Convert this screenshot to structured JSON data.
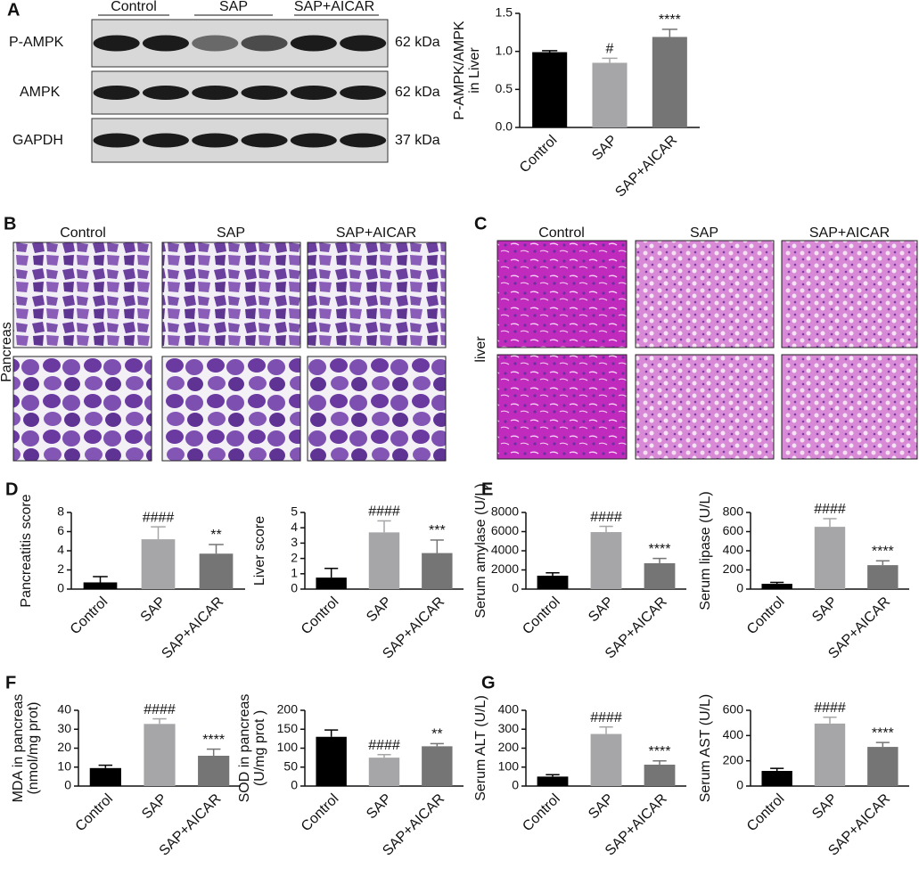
{
  "panels": {
    "letters": [
      "A",
      "B",
      "C",
      "D",
      "E",
      "F",
      "G"
    ],
    "blot": {
      "groups": [
        "Control",
        "SAP",
        "SAP+AICAR"
      ],
      "rows": [
        "P-AMPK",
        "AMPK",
        "GAPDH"
      ],
      "sizes": [
        "62 kDa",
        "62 kDa",
        "37 kDa"
      ]
    },
    "pancreas": {
      "label": "Pancreas",
      "groups": [
        "Control",
        "SAP",
        "SAP+AICAR"
      ]
    },
    "liver": {
      "label": "liver",
      "groups": [
        "Control",
        "SAP",
        "SAP+AICAR"
      ]
    }
  },
  "chart_data": [
    {
      "type": "bar",
      "ylabel": [
        "P-AMPK/AMPK",
        "in Liver"
      ],
      "categories": [
        "Control",
        "SAP",
        "SAP+AICAR"
      ],
      "values": [
        0.99,
        0.85,
        1.19
      ],
      "errors": [
        0.02,
        0.06,
        0.1
      ],
      "annotations": [
        null,
        "#",
        "****"
      ],
      "colors": [
        "#000000",
        "#a6a6a8",
        "#757575"
      ],
      "ylim": [
        0,
        1.5
      ],
      "yticks": [
        {
          "value": 0,
          "label": "0.0"
        },
        0.5,
        {
          "value": 1,
          "label": "1.0"
        },
        1.5
      ]
    },
    {
      "type": "bar",
      "ylabel": [
        "Pancreatitis score"
      ],
      "categories": [
        "Control",
        "SAP",
        "SAP+AICAR"
      ],
      "values": [
        0.7,
        5.2,
        3.7
      ],
      "errors": [
        0.6,
        1.3,
        0.95
      ],
      "annotations": [
        null,
        "####",
        "**"
      ],
      "colors": [
        "#000000",
        "#a6a6a8",
        "#757575"
      ],
      "ylim": [
        0,
        8
      ],
      "yticks": [
        0,
        2,
        4,
        6,
        8
      ]
    },
    {
      "type": "bar",
      "ylabel": [
        "Liver score"
      ],
      "categories": [
        "Control",
        "SAP",
        "SAP+AICAR"
      ],
      "values": [
        0.75,
        3.7,
        2.35
      ],
      "errors": [
        0.6,
        0.75,
        0.85
      ],
      "annotations": [
        null,
        "####",
        "***"
      ],
      "colors": [
        "#000000",
        "#a6a6a8",
        "#757575"
      ],
      "ylim": [
        0,
        5
      ],
      "yticks": [
        0,
        1,
        2,
        3,
        4,
        5
      ]
    },
    {
      "type": "bar",
      "ylabel": [
        "Serum amylase (U/L)"
      ],
      "categories": [
        "Control",
        "SAP",
        "SAP+AICAR"
      ],
      "values": [
        1400,
        5950,
        2700
      ],
      "errors": [
        300,
        600,
        500
      ],
      "annotations": [
        null,
        "####",
        "****"
      ],
      "colors": [
        "#000000",
        "#a6a6a8",
        "#757575"
      ],
      "ylim": [
        0,
        8000
      ],
      "yticks": [
        0,
        2000,
        4000,
        6000,
        8000
      ]
    },
    {
      "type": "bar",
      "ylabel": [
        "Serum lipase (U/L)"
      ],
      "categories": [
        "Control",
        "SAP",
        "SAP+AICAR"
      ],
      "values": [
        55,
        650,
        250
      ],
      "errors": [
        15,
        85,
        45
      ],
      "annotations": [
        null,
        "####",
        "****"
      ],
      "colors": [
        "#000000",
        "#a6a6a8",
        "#757575"
      ],
      "ylim": [
        0,
        800
      ],
      "yticks": [
        0,
        200,
        400,
        600,
        800
      ]
    },
    {
      "type": "bar",
      "ylabel": [
        "MDA in pancreas",
        "(nmol/mg prot)"
      ],
      "categories": [
        "Control",
        "SAP",
        "SAP+AICAR"
      ],
      "values": [
        9.5,
        32.8,
        16
      ],
      "errors": [
        1.5,
        2.7,
        3.5
      ],
      "annotations": [
        null,
        "####",
        "****"
      ],
      "colors": [
        "#000000",
        "#a6a6a8",
        "#757575"
      ],
      "ylim": [
        0,
        40
      ],
      "yticks": [
        0,
        10,
        20,
        30,
        40
      ]
    },
    {
      "type": "bar",
      "ylabel": [
        "SOD in pancreas",
        "(U/mg prot )"
      ],
      "categories": [
        "Control",
        "SAP",
        "SAP+AICAR"
      ],
      "values": [
        130,
        75,
        105
      ],
      "errors": [
        18,
        8,
        7
      ],
      "annotations": [
        null,
        "####",
        "**"
      ],
      "colors": [
        "#000000",
        "#a6a6a8",
        "#757575"
      ],
      "ylim": [
        0,
        200
      ],
      "yticks": [
        0,
        50,
        100,
        150,
        200
      ]
    },
    {
      "type": "bar",
      "ylabel": [
        "Serum ALT (U/L)"
      ],
      "categories": [
        "Control",
        "SAP",
        "SAP+AICAR"
      ],
      "values": [
        50,
        275,
        113
      ],
      "errors": [
        10,
        37,
        20
      ],
      "annotations": [
        null,
        "####",
        "****"
      ],
      "colors": [
        "#000000",
        "#a6a6a8",
        "#757575"
      ],
      "ylim": [
        0,
        400
      ],
      "yticks": [
        0,
        100,
        200,
        300,
        400
      ]
    },
    {
      "type": "bar",
      "ylabel": [
        "Serum AST (U/L)"
      ],
      "categories": [
        "Control",
        "SAP",
        "SAP+AICAR"
      ],
      "values": [
        120,
        495,
        310
      ],
      "errors": [
        20,
        50,
        35
      ],
      "annotations": [
        null,
        "####",
        "****"
      ],
      "colors": [
        "#000000",
        "#a6a6a8",
        "#757575"
      ],
      "ylim": [
        0,
        600
      ],
      "yticks": [
        0,
        200,
        400,
        600
      ]
    }
  ]
}
